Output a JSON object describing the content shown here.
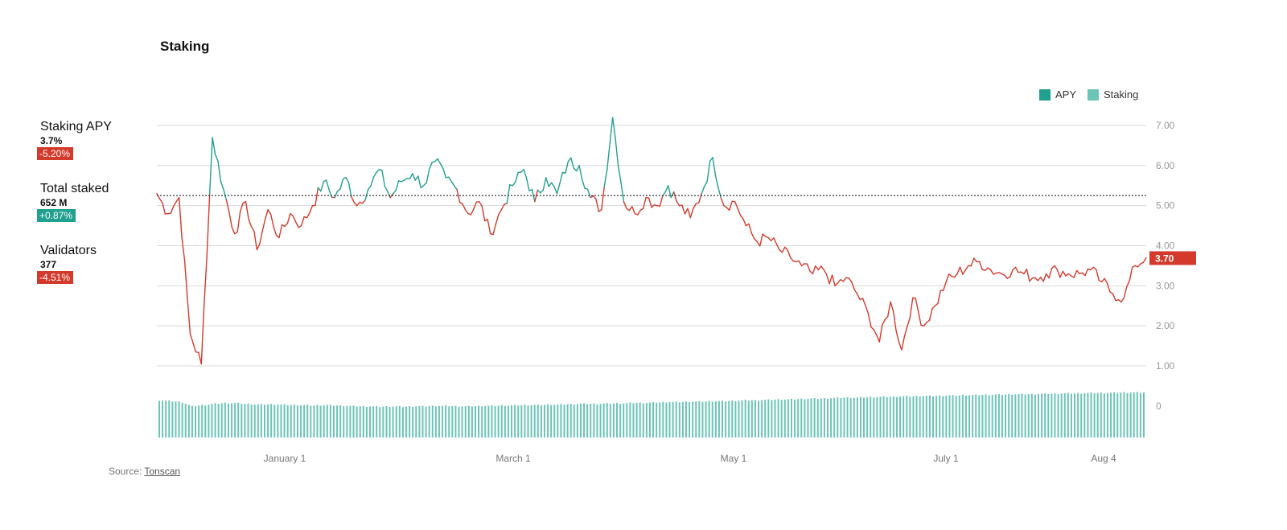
{
  "header": {
    "title": "Staking"
  },
  "stats": [
    {
      "label": "Staking APY",
      "value": "3.7%",
      "change": "-5.20%",
      "trend": "negative"
    },
    {
      "label": "Total staked",
      "value": "652 M",
      "change": "+0.87%",
      "trend": "positive"
    },
    {
      "label": "Validators",
      "value": "377",
      "change": "-4.51%",
      "trend": "negative"
    }
  ],
  "legend": [
    {
      "label": "APY",
      "color": "#20a08e"
    },
    {
      "label": "Staking",
      "color": "#6cc4b6"
    }
  ],
  "source": {
    "prefix": "Source:",
    "link_text": "Tonscan"
  },
  "colors": {
    "apy_above": "#20a08e",
    "apy_below": "#d43a2c",
    "volume": "#6cc4b6",
    "grid": "#d8d8d8",
    "reference": "#222222"
  },
  "chart_data": {
    "type": "line",
    "x_tick_labels": [
      "January 1",
      "March 1",
      "May 1",
      "July 1",
      "Aug 4"
    ],
    "y_tick_labels": [
      "1.00",
      "2.00",
      "3.00",
      "4.00",
      "5.00",
      "6.00",
      "7.00"
    ],
    "y_secondary_tick_labels": [
      "0"
    ],
    "ylim": [
      1,
      7
    ],
    "reference_line": 5.25,
    "last_value_label": "3.70",
    "grid": true,
    "legend_position": "top-right",
    "series": [
      {
        "name": "APY",
        "x": [
          "Nov 18",
          "Nov 21",
          "Nov 24",
          "Nov 27",
          "Nov 30",
          "Dec 3",
          "Dec 6",
          "Dec 9",
          "Dec 12",
          "Dec 15",
          "Dec 18",
          "Dec 21",
          "Dec 24",
          "Dec 27",
          "Dec 30",
          "Jan 2",
          "Jan 5",
          "Jan 8",
          "Jan 11",
          "Jan 14",
          "Jan 17",
          "Jan 20",
          "Jan 23",
          "Jan 26",
          "Jan 29",
          "Feb 1",
          "Feb 4",
          "Feb 7",
          "Feb 10",
          "Feb 13",
          "Feb 16",
          "Feb 19",
          "Feb 22",
          "Feb 25",
          "Feb 28",
          "Mar 3",
          "Mar 6",
          "Mar 9",
          "Mar 12",
          "Mar 15",
          "Mar 18",
          "Mar 21",
          "Mar 24",
          "Mar 27",
          "Mar 30",
          "Apr 2",
          "Apr 5",
          "Apr 8",
          "Apr 11",
          "Apr 14",
          "Apr 17",
          "Apr 20",
          "Apr 23",
          "Apr 26",
          "Apr 29",
          "May 2",
          "May 5",
          "May 8",
          "May 11",
          "May 14",
          "May 17",
          "May 20",
          "May 23",
          "May 26",
          "May 29",
          "Jun 1",
          "Jun 4",
          "Jun 7",
          "Jun 10",
          "Jun 13",
          "Jun 16",
          "Jun 19",
          "Jun 22",
          "Jun 25",
          "Jun 28",
          "Jul 1",
          "Jul 4",
          "Jul 7",
          "Jul 10",
          "Jul 13",
          "Jul 16",
          "Jul 19",
          "Jul 22",
          "Jul 25",
          "Jul 28",
          "Jul 31",
          "Aug 3",
          "Aug 6",
          "Aug 9",
          "Aug 12"
        ],
        "values": [
          5.3,
          4.8,
          5.2,
          1.8,
          1.05,
          6.7,
          5.4,
          4.3,
          5.1,
          3.9,
          4.9,
          4.2,
          4.8,
          4.5,
          5.0,
          5.6,
          5.2,
          5.7,
          5.0,
          5.4,
          5.9,
          5.2,
          5.6,
          5.8,
          5.5,
          6.1,
          5.7,
          5.4,
          4.8,
          5.1,
          4.3,
          4.9,
          5.5,
          5.9,
          5.1,
          5.7,
          5.3,
          6.1,
          6.0,
          5.2,
          4.9,
          7.2,
          5.1,
          4.8,
          5.2,
          5.0,
          5.5,
          5.0,
          4.7,
          5.3,
          6.2,
          5.0,
          5.1,
          4.5,
          4.1,
          4.2,
          3.9,
          3.7,
          3.5,
          3.3,
          3.4,
          3.0,
          3.2,
          2.8,
          2.3,
          1.6,
          2.6,
          1.4,
          2.7,
          2.0,
          2.5,
          3.1,
          3.3,
          3.5,
          3.6,
          3.4,
          3.3,
          3.4,
          3.3,
          3.2,
          3.3,
          3.4,
          3.3,
          3.3,
          3.4,
          3.1,
          2.8,
          2.7,
          3.5,
          3.7
        ]
      },
      {
        "name": "Staking",
        "values": [
          0.86,
          0.84,
          0.82,
          0.72,
          0.75,
          0.78,
          0.8,
          0.79,
          0.78,
          0.76,
          0.77,
          0.76,
          0.75,
          0.75,
          0.74,
          0.75,
          0.74,
          0.73,
          0.72,
          0.72,
          0.71,
          0.72,
          0.71,
          0.72,
          0.72,
          0.73,
          0.73,
          0.72,
          0.72,
          0.73,
          0.73,
          0.74,
          0.74,
          0.75,
          0.75,
          0.76,
          0.76,
          0.77,
          0.78,
          0.78,
          0.78,
          0.79,
          0.79,
          0.8,
          0.8,
          0.81,
          0.82,
          0.82,
          0.83,
          0.83,
          0.84,
          0.84,
          0.85,
          0.86,
          0.86,
          0.87,
          0.88,
          0.88,
          0.89,
          0.9,
          0.9,
          0.91,
          0.92,
          0.92,
          0.93,
          0.94,
          0.94,
          0.95,
          0.95,
          0.96,
          0.96,
          0.97,
          0.97,
          0.98,
          0.98,
          0.99,
          0.99,
          1.0,
          1.0,
          1.0,
          1.01,
          1.01,
          1.02,
          1.02,
          1.03,
          1.03,
          1.03,
          1.04,
          1.04,
          1.04
        ]
      }
    ]
  }
}
